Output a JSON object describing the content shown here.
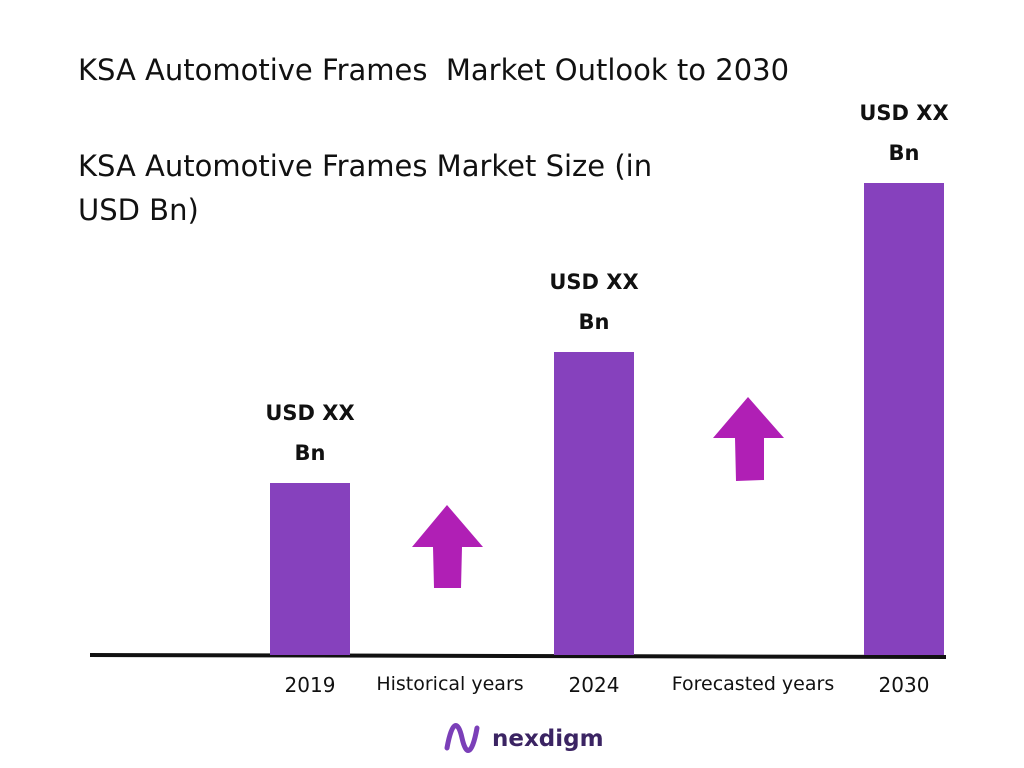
{
  "chart_data": {
    "type": "bar",
    "title": "KSA Automotive Frames  Market Outlook to 2030",
    "subtitle": "KSA Automotive Frames Market Size (in USD Bn)",
    "categories": [
      "2019",
      "2024",
      "2030"
    ],
    "values": [
      172,
      303,
      472
    ],
    "value_labels": [
      "USD XX Bn",
      "USD XX Bn",
      "USD XX Bn"
    ],
    "color": "#8641bd",
    "annotations": [
      "Historical years",
      "Forecasted years"
    ],
    "brand": "nexdigm"
  }
}
